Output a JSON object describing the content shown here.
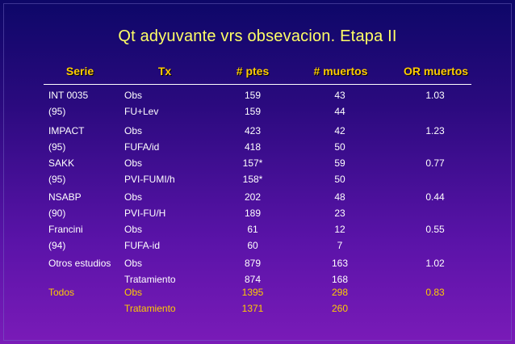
{
  "title": "Qt adyuvante vrs obsevacion.  Etapa II",
  "headers": {
    "serie": "Serie",
    "tx": "Tx",
    "ptes": "# ptes",
    "muertos": "# muertos",
    "or": "OR  muertos"
  },
  "rows": [
    {
      "serie": "INT 0035",
      "tx": "Obs",
      "ptes": "159",
      "muertos": "43",
      "or": "1.03"
    },
    {
      "serie": "(95)",
      "tx": "FU+Lev",
      "ptes": "159",
      "muertos": "44",
      "or": ""
    },
    {
      "serie": "IMPACT",
      "tx": "Obs",
      "ptes": "423",
      "muertos": "42",
      "or": "1.23"
    },
    {
      "serie": "(95)",
      "tx": "FUFA/id",
      "ptes": "418",
      "muertos": "50",
      "or": ""
    },
    {
      "serie": "SAKK",
      "tx": "Obs",
      "ptes": "157*",
      "muertos": "59",
      "or": "0.77"
    },
    {
      "serie": "(95)",
      "tx": "PVI-FUMI/h",
      "ptes": "158*",
      "muertos": "50",
      "or": ""
    },
    {
      "serie": "NSABP",
      "tx": "Obs",
      "ptes": "202",
      "muertos": "48",
      "or": "0.44"
    },
    {
      "serie": "(90)",
      "tx": "PVI-FU/H",
      "ptes": "189",
      "muertos": "23",
      "or": ""
    },
    {
      "serie": "Francini",
      "tx": "Obs",
      "ptes": "61",
      "muertos": "12",
      "or": "0.55"
    },
    {
      "serie": "(94)",
      "tx": "FUFA-id",
      "ptes": "60",
      "muertos": "7",
      "or": ""
    },
    {
      "serie": "Otros estudios",
      "tx": "Obs",
      "ptes": "879",
      "muertos": "163",
      "or": "1.02"
    },
    {
      "serie": "",
      "tx": "Tratamiento",
      "ptes": "874",
      "muertos": "168",
      "or": ""
    },
    {
      "serie": "Todos",
      "tx": "Obs",
      "ptes": "1395",
      "muertos": "298",
      "or": "0.83",
      "total": true
    },
    {
      "serie": "",
      "tx": "Tratamiento",
      "ptes": "1371",
      "muertos": "260",
      "or": "",
      "total": true
    }
  ],
  "colors": {
    "title": "#ffff66",
    "header": "#ffcc00",
    "text": "#ffffff",
    "total": "#ffcc00",
    "background_top": "#0d0768",
    "background_bottom": "#7a1bb8"
  }
}
